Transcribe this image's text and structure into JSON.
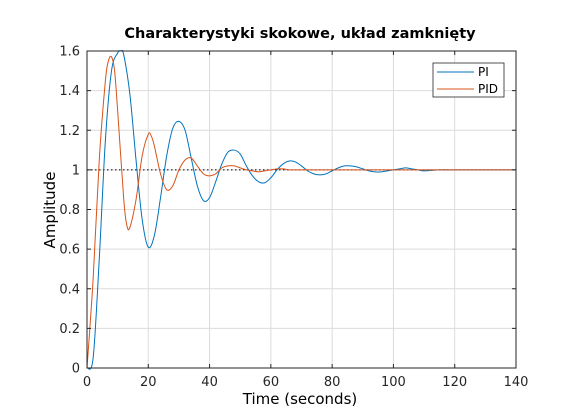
{
  "chart_data": {
    "type": "line",
    "title": "Charakterystyki skokowe, układ zamknięty",
    "xlabel": "Time (seconds)",
    "ylabel": "Amplitude",
    "xlim": [
      0,
      140
    ],
    "ylim": [
      0,
      1.6
    ],
    "xticks": [
      0,
      20,
      40,
      60,
      80,
      100,
      120,
      140
    ],
    "xtick_labels": [
      "0",
      "20",
      "40",
      "60",
      "80",
      "100",
      "120",
      "140"
    ],
    "yticks": [
      0,
      0.2,
      0.4,
      0.6,
      0.8,
      1.0,
      1.2,
      1.4,
      1.6
    ],
    "ytick_labels": [
      "0",
      "0.2",
      "0.4",
      "0.6",
      "0.8",
      "1",
      "1.2",
      "1.4",
      "1.6"
    ],
    "grid": true,
    "legend_position": "top-right",
    "reference_line": {
      "y": 1,
      "style": "dotted",
      "color": "#000000"
    },
    "series": [
      {
        "name": "PI",
        "color": "#0072BD",
        "x": [
          0,
          2,
          4,
          6,
          8,
          10,
          11,
          12,
          14,
          16,
          18,
          20,
          22,
          24,
          26,
          28,
          30,
          32,
          34,
          36,
          38,
          40,
          42,
          44,
          46,
          48,
          50,
          52,
          54,
          56,
          58,
          60,
          62,
          64,
          66,
          68,
          70,
          72,
          74,
          76,
          78,
          80,
          82,
          84,
          86,
          88,
          90,
          92,
          94,
          96,
          98,
          100,
          102,
          104,
          106,
          108,
          110,
          115,
          120,
          125,
          130,
          135,
          140
        ],
        "y": [
          0,
          0.05,
          0.55,
          1.15,
          1.5,
          1.59,
          1.6,
          1.58,
          1.38,
          1.05,
          0.75,
          0.61,
          0.67,
          0.86,
          1.07,
          1.21,
          1.245,
          1.2,
          1.06,
          0.92,
          0.845,
          0.86,
          0.94,
          1.03,
          1.09,
          1.1,
          1.08,
          1.02,
          0.97,
          0.94,
          0.935,
          0.96,
          1.0,
          1.03,
          1.045,
          1.04,
          1.02,
          0.995,
          0.98,
          0.975,
          0.98,
          0.995,
          1.01,
          1.02,
          1.02,
          1.015,
          1.005,
          0.995,
          0.99,
          0.99,
          0.995,
          1.0,
          1.005,
          1.01,
          1.005,
          1.0,
          0.995,
          1.0,
          1.0,
          1.0,
          1.0,
          1.0,
          1.0
        ]
      },
      {
        "name": "PID",
        "color": "#D95319",
        "x": [
          0,
          2,
          4,
          6,
          7,
          8,
          9,
          10,
          12,
          13,
          14,
          16,
          18,
          20,
          21,
          22,
          24,
          26,
          28,
          30,
          32,
          34,
          36,
          38,
          40,
          42,
          44,
          46,
          48,
          50,
          52,
          54,
          56,
          58,
          60,
          62,
          64,
          66,
          68,
          70,
          75,
          80,
          85,
          90,
          95,
          100,
          110,
          120,
          130,
          140
        ],
        "y": [
          0,
          0.45,
          1.05,
          1.45,
          1.55,
          1.57,
          1.5,
          1.3,
          0.85,
          0.72,
          0.71,
          0.85,
          1.07,
          1.18,
          1.17,
          1.12,
          0.98,
          0.9,
          0.92,
          1.0,
          1.05,
          1.06,
          1.02,
          0.98,
          0.97,
          0.98,
          1.01,
          1.02,
          1.02,
          1.01,
          1.0,
          0.995,
          0.99,
          0.995,
          1.0,
          1.005,
          1.005,
          1.0,
          1.0,
          1.0,
          1.0,
          1.0,
          1.0,
          1.0,
          1.0,
          1.0,
          1.0,
          1.0,
          1.0,
          1.0
        ]
      }
    ]
  }
}
